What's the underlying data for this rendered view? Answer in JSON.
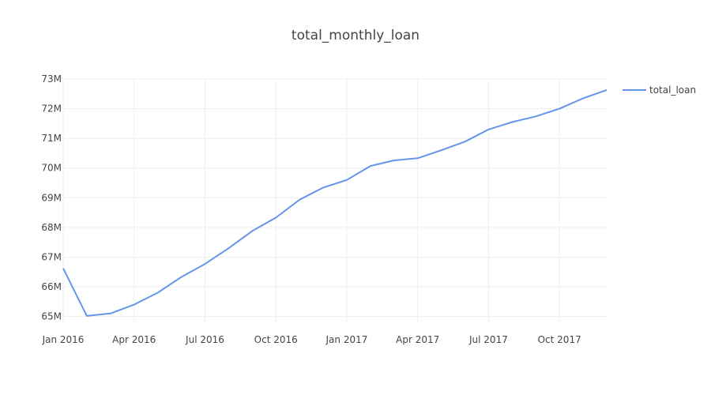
{
  "chart_data": {
    "type": "line",
    "title": "total_monthly_loan",
    "xlabel": "",
    "ylabel": "",
    "grid": true,
    "legend_placement": "top-right",
    "x": [
      "2016-01",
      "2016-02",
      "2016-03",
      "2016-04",
      "2016-05",
      "2016-06",
      "2016-07",
      "2016-08",
      "2016-09",
      "2016-10",
      "2016-11",
      "2016-12",
      "2017-01",
      "2017-02",
      "2017-03",
      "2017-04",
      "2017-05",
      "2017-06",
      "2017-07",
      "2017-08",
      "2017-09",
      "2017-10",
      "2017-11",
      "2017-12"
    ],
    "series": [
      {
        "name": "total_loan",
        "color": "#6495ed",
        "values": [
          66.62,
          65.02,
          65.1,
          65.4,
          65.8,
          66.33,
          66.77,
          67.3,
          67.88,
          68.33,
          68.93,
          69.34,
          69.6,
          70.07,
          70.26,
          70.33,
          70.6,
          70.89,
          71.3,
          71.55,
          71.74,
          72.0,
          72.35,
          72.63
        ]
      }
    ],
    "x_ticks": [
      "Jan 2016",
      "Apr 2016",
      "Jul 2016",
      "Oct 2016",
      "Jan 2017",
      "Apr 2017",
      "Jul 2017",
      "Oct 2017"
    ],
    "y_ticks": [
      "65M",
      "66M",
      "67M",
      "68M",
      "69M",
      "70M",
      "71M",
      "72M",
      "73M"
    ],
    "y_tick_values": [
      65,
      66,
      67,
      68,
      69,
      70,
      71,
      72,
      73
    ],
    "xlim": [
      "2016-01",
      "2017-12"
    ],
    "ylim": [
      64.75,
      73
    ]
  }
}
